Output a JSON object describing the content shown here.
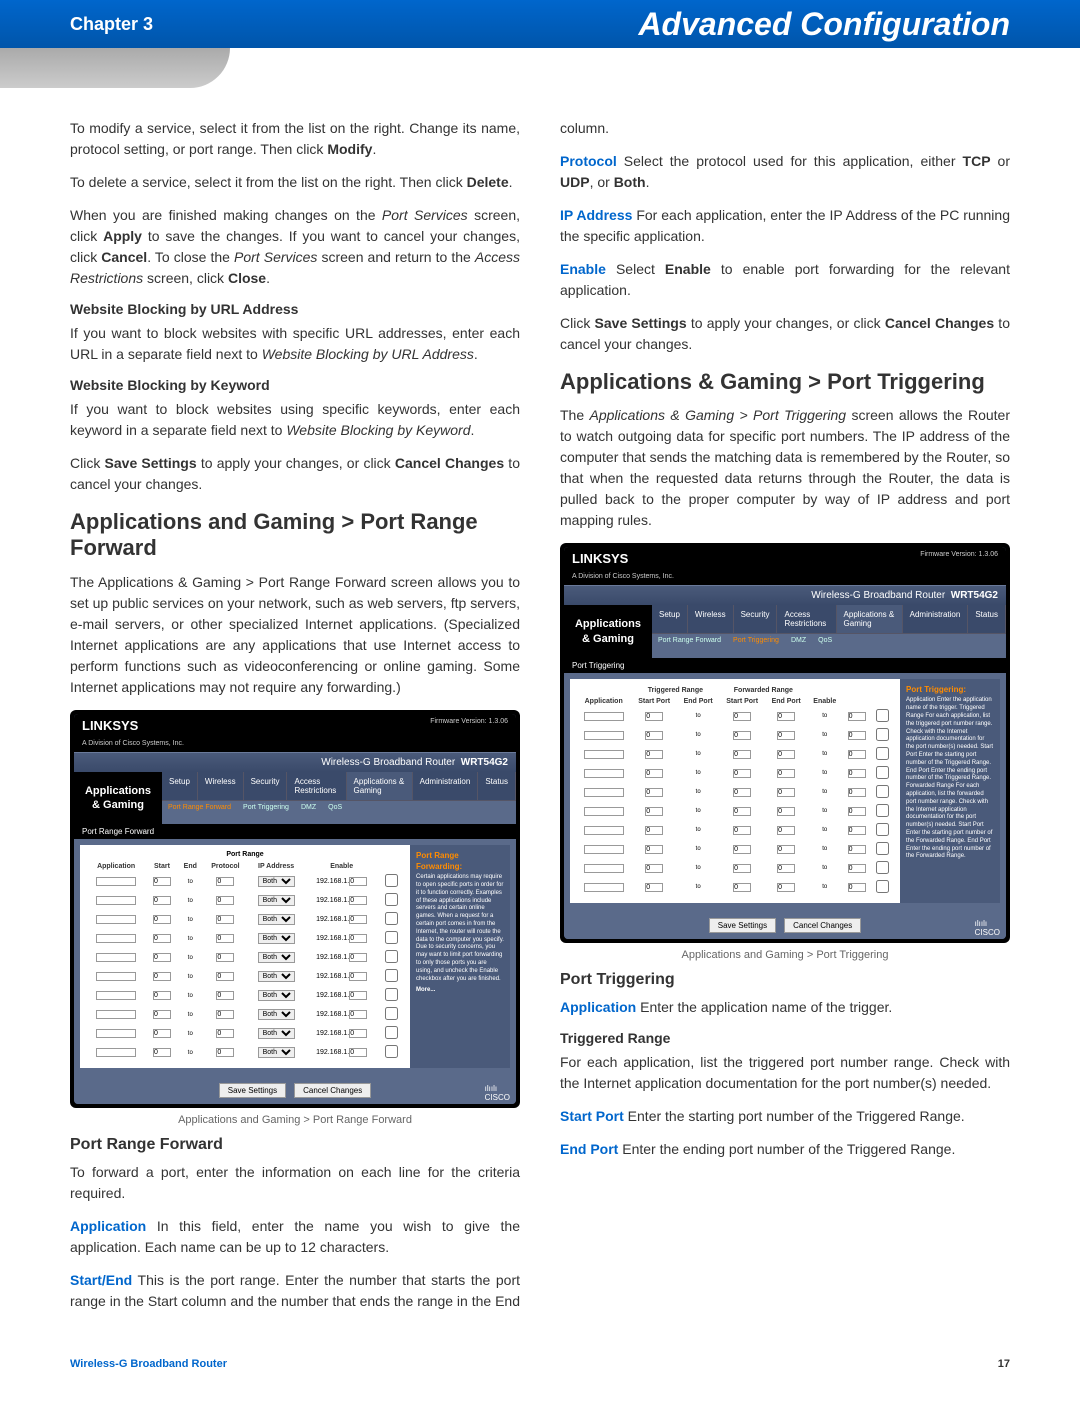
{
  "header": {
    "chapter": "Chapter 3",
    "title": "Advanced Configuration"
  },
  "left": {
    "p1_a": "To modify a service, select it from the list on the right. Change its name, protocol setting, or port range. Then click ",
    "p1_b": "Modify",
    "p1_c": ".",
    "p2_a": "To delete a service, select it from the list on the right. Then click ",
    "p2_b": "Delete",
    "p2_c": ".",
    "p3_a": "When you are finished making changes on the ",
    "p3_i1": "Port Services",
    "p3_b": " screen, click ",
    "p3_apply": "Apply",
    "p3_c": " to save the changes. If you want to cancel your changes, click ",
    "p3_cancel": "Cancel",
    "p3_d": ". To close the ",
    "p3_i2": "Port Services",
    "p3_e": " screen and return to the ",
    "p3_i3": "Access Restrictions",
    "p3_f": " screen, click ",
    "p3_close": "Close",
    "p3_g": ".",
    "h_url": "Website Blocking by URL Address",
    "p4_a": "If you want to block websites with specific URL addresses, enter each URL in a separate field next to ",
    "p4_i": "Website Blocking by URL Address",
    "p4_b": ".",
    "h_kw": "Website Blocking by Keyword",
    "p5_a": "If you want to block websites using specific keywords, enter each keyword in a separate field next to ",
    "p5_i": "Website Blocking by Keyword",
    "p5_b": ".",
    "p6_a": "Click ",
    "p6_save": "Save Settings",
    "p6_b": " to apply your changes, or click ",
    "p6_cancel": "Cancel Changes",
    "p6_c": " to cancel your changes.",
    "h2_prf": "Applications and Gaming > Port Range Forward",
    "p7": "The Applications & Gaming > Port Range Forward screen allows you to set up public services on your network, such as web servers, ftp servers, e-mail servers, or other specialized Internet applications. (Specialized Internet applications are any applications that use Internet access to perform functions such as videoconferencing or online gaming. Some Internet applications may not require any forwarding.)",
    "cap1": "Applications and Gaming > Port Range Forward",
    "h3_prf": "Port Range Forward",
    "p8": "To forward a port, enter the information on each line for the criteria required."
  },
  "right": {
    "t_app": "Application",
    "p_app": "  In this field, enter the name you wish to give the application. Each name can be up to 12 characters.",
    "t_se": "Start/End",
    "p_se": "  This is the port range. Enter the number that starts the port range in the Start column and the number that ends the range in the End column.",
    "t_proto": "Protocol",
    "p_proto_a": "  Select the protocol used for this application, either ",
    "b_tcp": "TCP",
    "p_or1": " or ",
    "b_udp": "UDP",
    "p_or2": ", or ",
    "b_both": "Both",
    "p_dot": ".",
    "t_ip": "IP Address",
    "p_ip": "  For each application, enter the IP Address of the PC running the specific application.",
    "t_en": "Enable",
    "p_en_a": "  Select ",
    "b_en": "Enable",
    "p_en_b": " to enable port forwarding for the relevant application.",
    "p_save_a": "Click ",
    "b_save": "Save Settings",
    "p_save_b": " to apply your changes, or click ",
    "b_cancel": "Cancel Changes",
    "p_save_c": " to cancel your changes.",
    "h2_pt": "Applications & Gaming > Port Triggering",
    "p_pt_a": "The ",
    "p_pt_i": "Applications & Gaming > Port Triggering",
    "p_pt_b": " screen allows the Router to watch outgoing data for specific port numbers. The IP address of the computer that sends the matching data is remembered by the Router, so that when the requested data returns through the Router, the data is pulled back to the proper computer by way of IP address and port mapping rules.",
    "cap2": "Applications and Gaming > Port Triggering",
    "h3_pt": "Port Triggering",
    "t_app2": "Application",
    "p_app2": "  Enter the application name of the trigger.",
    "h4_tr": "Triggered Range",
    "p_tr": "For each application, list the triggered port number range. Check with the Internet application documentation for the port number(s) needed.",
    "t_sp": "Start Port",
    "p_sp": "  Enter the starting port number of the Triggered Range.",
    "t_ep": "End Port",
    "p_ep": "  Enter the ending port number of the Triggered Range."
  },
  "shot1": {
    "linksys": "LINKSYS",
    "sub": "A Division of Cisco Systems, Inc.",
    "fw": "Firmware Version: 1.3.06",
    "router": "Wireless-G Broadband Router",
    "model": "WRT54G2",
    "section": "Applications & Gaming",
    "tabs": [
      "Setup",
      "Wireless",
      "Security",
      "Access Restrictions",
      "Applications & Gaming",
      "Administration",
      "Status"
    ],
    "subtabs": [
      "Port Range Forward",
      "Port Triggering",
      "DMZ",
      "QoS"
    ],
    "sidebar": "Port Range Forward",
    "th_group": "Port Range",
    "th": [
      "Application",
      "Start",
      "End",
      "Protocol",
      "IP Address",
      "Enable"
    ],
    "proto": "Both",
    "ip": "192.168.1.",
    "ip2": "0",
    "to": "to",
    "help_title": "Port Range Forwarding:",
    "help": "Certain applications may require to open specific ports in order for it to function correctly. Examples of these applications include servers and certain online games. When a request for a certain port comes in from the Internet, the router will route the data to the computer you specify. Due to security concerns, you may want to limit port forwarding to only those ports you are using, and uncheck the Enable checkbox after you are finished.",
    "more": "More...",
    "save": "Save Settings",
    "cancel": "Cancel Changes",
    "cisco": "CISCO"
  },
  "shot2": {
    "section": "Applications & Gaming",
    "sidebar": "Port Triggering",
    "grp1": "Triggered Range",
    "grp2": "Forwarded Range",
    "th": [
      "Application",
      "Start Port",
      "End Port",
      "Start Port",
      "End Port",
      "Enable"
    ],
    "help_title": "Port Triggering:",
    "help": "Application Enter the application name of the trigger. Triggered Range For each application, list the triggered port number range. Check with the Internet application documentation for the port number(s) needed. Start Port Enter the starting port number of the Triggered Range. End Port Enter the ending port number of the Triggered Range. Forwarded Range For each application, list the forwarded port number range. Check with the Internet application documentation for the port number(s) needed. Start Port Enter the starting port number of the Forwarded Range. End Port Enter the ending port number of the Forwarded Range."
  },
  "footer": {
    "product": "Wireless-G Broadband Router",
    "page": "17"
  },
  "colors": {
    "accent": "#0066cc",
    "term": "#0066cc",
    "panel": "#5a6a8a"
  }
}
